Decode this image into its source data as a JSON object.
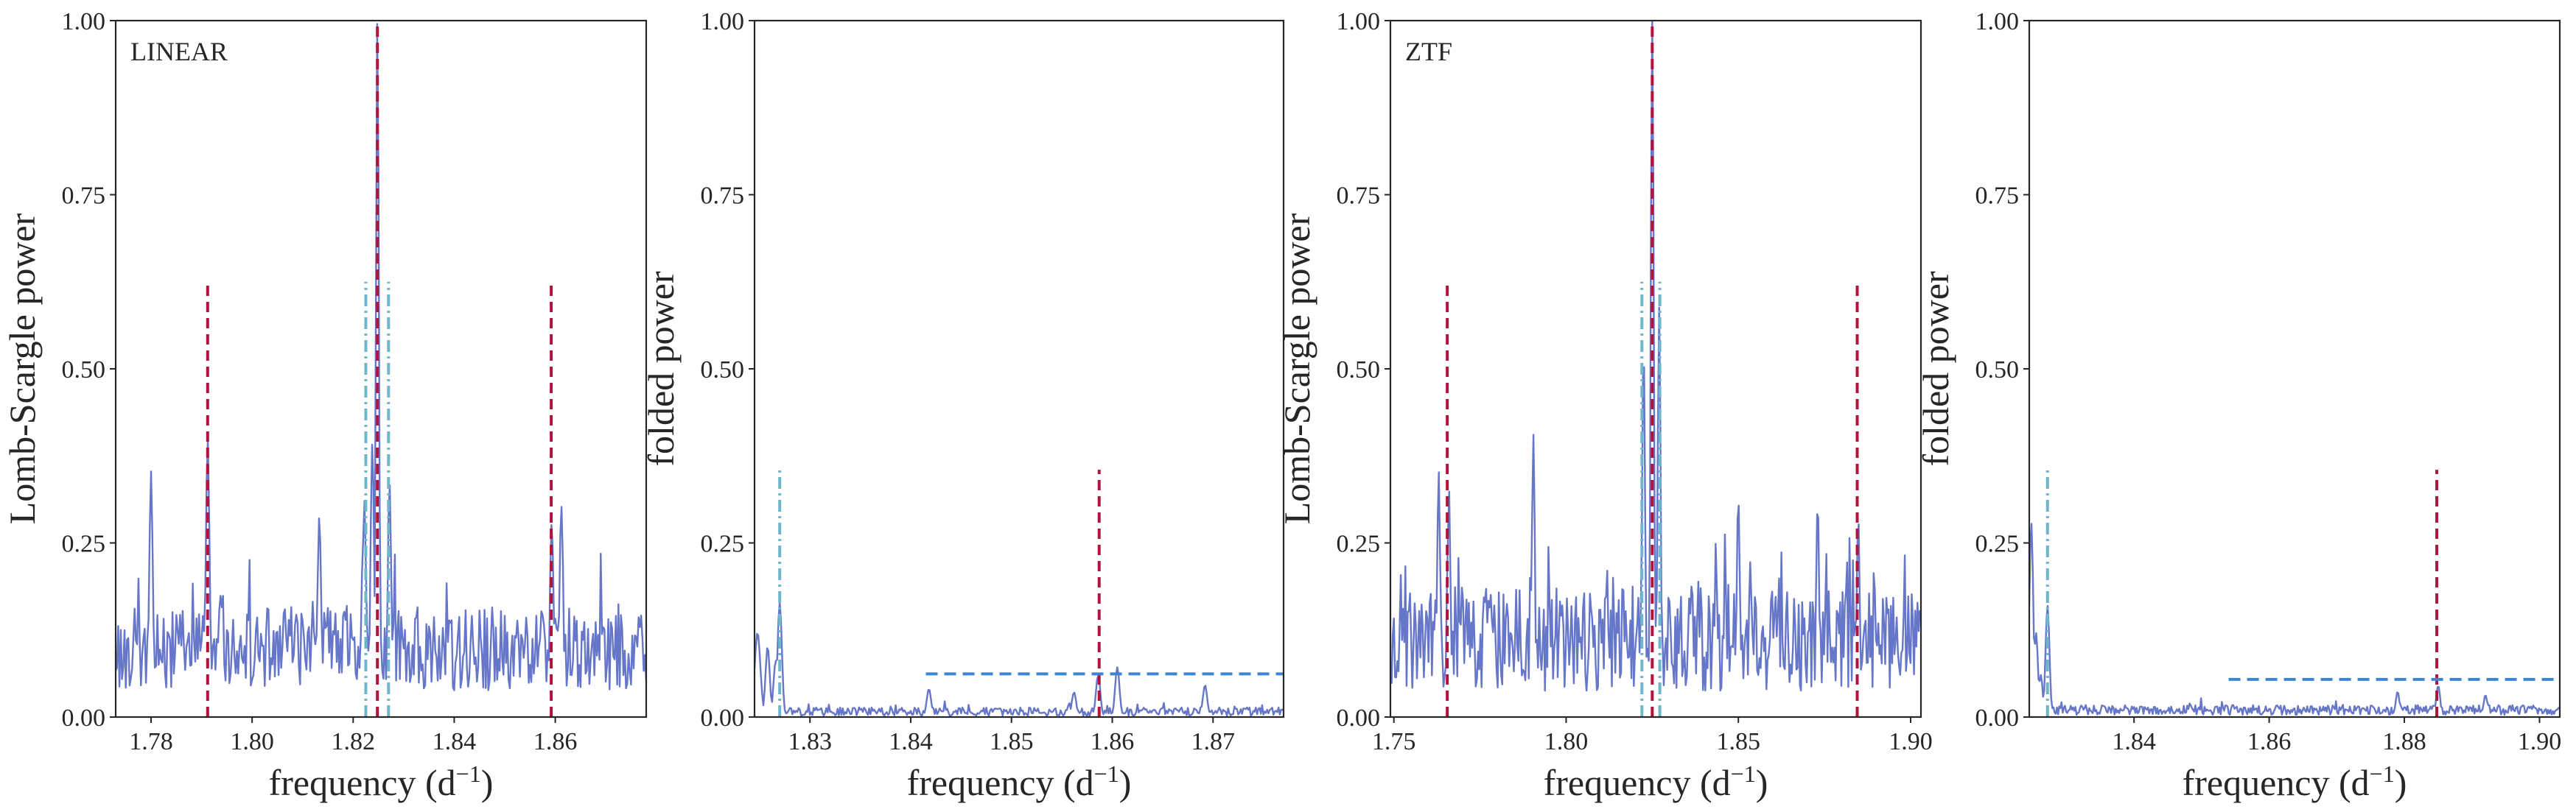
{
  "colors": {
    "series": "#6676c8",
    "red_dashed": "#b0143c",
    "cyan_dashdot": "#6db6cc",
    "blue_dashed": "#3a86d4",
    "axis": "#262626"
  },
  "chart_data": [
    {
      "type": "line",
      "panel_label": "LINEAR",
      "xlabel": "frequency (d",
      "xlabel_sup": "−1",
      "xlabel_close": ")",
      "ylabel": "Lomb-Scargle power",
      "xlim": [
        1.773,
        1.878
      ],
      "ylim": [
        0,
        1.0
      ],
      "xticks": [
        1.78,
        1.8,
        1.82,
        1.84,
        1.86
      ],
      "xtick_labels": [
        "1.78",
        "1.80",
        "1.82",
        "1.84",
        "1.86"
      ],
      "yticks": [
        0,
        0.25,
        0.5,
        0.75,
        1.0
      ],
      "ytick_labels": [
        "0.00",
        "0.25",
        "0.50",
        "0.75",
        "1.00"
      ],
      "series": [
        {
          "noise_seed": 11,
          "points": 420,
          "baseline": 0.08,
          "noise_amp": 0.12,
          "peaks": [
            {
              "x": 1.8248,
              "y": 1.0,
              "w": 0.0004
            },
            {
              "x": 1.8238,
              "y": 0.39,
              "w": 0.0005
            },
            {
              "x": 1.8222,
              "y": 0.3,
              "w": 0.0005
            },
            {
              "x": 1.8272,
              "y": 0.32,
              "w": 0.0005
            },
            {
              "x": 1.7912,
              "y": 0.39,
              "w": 0.0005
            },
            {
              "x": 1.8593,
              "y": 0.27,
              "w": 0.0005
            },
            {
              "x": 1.8612,
              "y": 0.3,
              "w": 0.0005
            },
            {
              "x": 1.78,
              "y": 0.34,
              "w": 0.0005
            },
            {
              "x": 1.8133,
              "y": 0.28,
              "w": 0.0005
            }
          ]
        }
      ],
      "vlines": [
        {
          "x": 1.8248,
          "ymin": 0,
          "ymax": 1.0,
          "style": "red_dashed"
        },
        {
          "x": 1.7912,
          "ymin": 0,
          "ymax": 0.625,
          "style": "red_dashed"
        },
        {
          "x": 1.8592,
          "ymin": 0,
          "ymax": 0.625,
          "style": "red_dashed"
        },
        {
          "x": 1.8225,
          "ymin": 0,
          "ymax": 0.625,
          "style": "cyan_dashdot"
        },
        {
          "x": 1.827,
          "ymin": 0,
          "ymax": 0.625,
          "style": "cyan_dashdot"
        }
      ],
      "hlines": []
    },
    {
      "type": "line",
      "panel_label": "",
      "xlabel": "frequency (d",
      "xlabel_sup": "−1",
      "xlabel_close": ")",
      "ylabel": "folded power",
      "xlim": [
        1.8245,
        1.877
      ],
      "ylim": [
        0,
        1.0
      ],
      "xticks": [
        1.83,
        1.84,
        1.85,
        1.86,
        1.87
      ],
      "xtick_labels": [
        "1.83",
        "1.84",
        "1.85",
        "1.86",
        "1.87"
      ],
      "yticks": [
        0,
        0.25,
        0.5,
        0.75,
        1.0
      ],
      "ytick_labels": [
        "0.00",
        "0.25",
        "0.50",
        "0.75",
        "1.00"
      ],
      "series": [
        {
          "noise_seed": 23,
          "points": 420,
          "baseline": 0.006,
          "noise_amp": 0.012,
          "peaks": [
            {
              "x": 1.8248,
              "y": 0.12,
              "w": 0.0004
            },
            {
              "x": 1.8258,
              "y": 0.1,
              "w": 0.0003
            },
            {
              "x": 1.8266,
              "y": 0.08,
              "w": 0.0003
            },
            {
              "x": 1.827,
              "y": 0.165,
              "w": 0.0003
            },
            {
              "x": 1.8586,
              "y": 0.06,
              "w": 0.0003
            },
            {
              "x": 1.8605,
              "y": 0.07,
              "w": 0.0003
            },
            {
              "x": 1.8418,
              "y": 0.04,
              "w": 0.0003
            },
            {
              "x": 1.8562,
              "y": 0.035,
              "w": 0.0003
            },
            {
              "x": 1.8692,
              "y": 0.045,
              "w": 0.0003
            }
          ]
        }
      ],
      "vlines": [
        {
          "x": 1.827,
          "ymin": 0,
          "ymax": 0.355,
          "style": "cyan_dashdot"
        },
        {
          "x": 1.8587,
          "ymin": 0,
          "ymax": 0.355,
          "style": "red_dashed"
        }
      ],
      "hlines": [
        {
          "y": 0.062,
          "xmin": 1.8415,
          "xmax": 1.877,
          "style": "blue_dashed"
        }
      ]
    },
    {
      "type": "line",
      "panel_label": "ZTF",
      "xlabel": "frequency (d",
      "xlabel_sup": "−1",
      "xlabel_close": ")",
      "ylabel": "Lomb-Scargle power",
      "xlim": [
        1.749,
        1.903
      ],
      "ylim": [
        0,
        1.0
      ],
      "xticks": [
        1.75,
        1.8,
        1.85,
        1.9
      ],
      "xtick_labels": [
        "1.75",
        "1.80",
        "1.85",
        "1.90"
      ],
      "yticks": [
        0,
        0.25,
        0.5,
        0.75,
        1.0
      ],
      "ytick_labels": [
        "0.00",
        "0.25",
        "0.50",
        "0.75",
        "1.00"
      ],
      "series": [
        {
          "noise_seed": 37,
          "points": 460,
          "baseline": 0.09,
          "noise_amp": 0.15,
          "peaks": [
            {
              "x": 1.825,
              "y": 1.0,
              "w": 0.0006
            },
            {
              "x": 1.8225,
              "y": 0.52,
              "w": 0.0006
            },
            {
              "x": 1.827,
              "y": 0.57,
              "w": 0.0006
            },
            {
              "x": 1.766,
              "y": 0.32,
              "w": 0.0006
            },
            {
              "x": 1.763,
              "y": 0.34,
              "w": 0.0006
            },
            {
              "x": 1.7905,
              "y": 0.385,
              "w": 0.0006
            },
            {
              "x": 1.8848,
              "y": 0.28,
              "w": 0.0006
            },
            {
              "x": 1.873,
              "y": 0.3,
              "w": 0.0006
            },
            {
              "x": 1.85,
              "y": 0.31,
              "w": 0.0006
            }
          ]
        }
      ],
      "vlines": [
        {
          "x": 1.825,
          "ymin": 0,
          "ymax": 1.0,
          "style": "red_dashed"
        },
        {
          "x": 1.7655,
          "ymin": 0,
          "ymax": 0.625,
          "style": "red_dashed"
        },
        {
          "x": 1.8845,
          "ymin": 0,
          "ymax": 0.625,
          "style": "red_dashed"
        },
        {
          "x": 1.822,
          "ymin": 0,
          "ymax": 0.625,
          "style": "cyan_dashdot"
        },
        {
          "x": 1.8272,
          "ymin": 0,
          "ymax": 0.625,
          "style": "cyan_dashdot"
        }
      ],
      "hlines": []
    },
    {
      "type": "line",
      "panel_label": "",
      "xlabel": "frequency (d",
      "xlabel_sup": "−1",
      "xlabel_close": ")",
      "ylabel": "folded power",
      "xlim": [
        1.8245,
        1.903
      ],
      "ylim": [
        0,
        1.0
      ],
      "xticks": [
        1.84,
        1.86,
        1.88,
        1.9
      ],
      "xtick_labels": [
        "1.84",
        "1.86",
        "1.88",
        "1.90"
      ],
      "yticks": [
        0,
        0.25,
        0.5,
        0.75,
        1.0
      ],
      "ytick_labels": [
        "0.00",
        "0.25",
        "0.50",
        "0.75",
        "1.00"
      ],
      "series": [
        {
          "noise_seed": 53,
          "points": 460,
          "baseline": 0.008,
          "noise_amp": 0.014,
          "peaks": [
            {
              "x": 1.8248,
              "y": 0.28,
              "w": 0.0004
            },
            {
              "x": 1.8255,
              "y": 0.12,
              "w": 0.0004
            },
            {
              "x": 1.8262,
              "y": 0.06,
              "w": 0.0004
            },
            {
              "x": 1.8272,
              "y": 0.16,
              "w": 0.0004
            },
            {
              "x": 1.885,
              "y": 0.045,
              "w": 0.0004
            },
            {
              "x": 1.879,
              "y": 0.035,
              "w": 0.0004
            },
            {
              "x": 1.892,
              "y": 0.03,
              "w": 0.0004
            }
          ]
        }
      ],
      "vlines": [
        {
          "x": 1.8272,
          "ymin": 0,
          "ymax": 0.355,
          "style": "cyan_dashdot"
        },
        {
          "x": 1.8848,
          "ymin": 0,
          "ymax": 0.355,
          "style": "red_dashed"
        }
      ],
      "hlines": [
        {
          "y": 0.054,
          "xmin": 1.854,
          "xmax": 1.903,
          "style": "blue_dashed"
        }
      ]
    }
  ]
}
